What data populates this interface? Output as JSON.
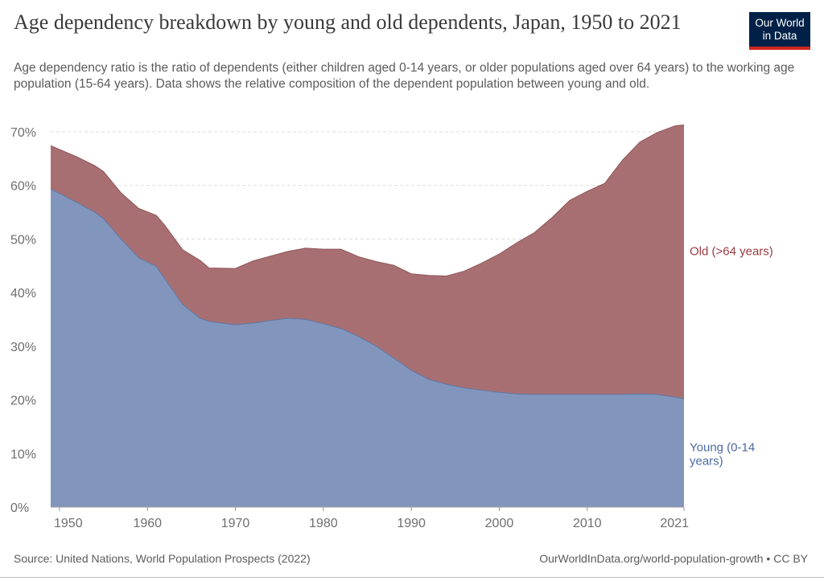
{
  "header": {
    "title": "Age dependency breakdown by young and old dependents, Japan, 1950 to 2021",
    "subtitle": "Age dependency ratio is the ratio of dependents (either children aged 0-14 years, or older populations aged over 64 years) to the working age population (15-64 years). Data shows the relative composition of the dependent population between young and old.",
    "logo_line1": "Our World",
    "logo_line2": "in Data"
  },
  "footer": {
    "source": "Source: United Nations, World Population Prospects (2022)",
    "url": "OurWorldInData.org/world-population-growth • CC BY"
  },
  "colors": {
    "young": "#8296bd",
    "young_stroke": "#5f78a8",
    "old": "#a86f72",
    "old_stroke": "#8f5558",
    "old_label": "#9b3a3f",
    "young_label": "#4c6aa0"
  },
  "chart_data": {
    "type": "area",
    "stacked": true,
    "title": "Age dependency breakdown by young and old dependents, Japan, 1950 to 2021",
    "x": [
      1949,
      1950,
      1952,
      1954,
      1955,
      1957,
      1959,
      1961,
      1962,
      1964,
      1966,
      1967,
      1970,
      1972,
      1974,
      1976,
      1978,
      1980,
      1982,
      1984,
      1986,
      1988,
      1990,
      1992,
      1994,
      1996,
      1998,
      2000,
      2002,
      2004,
      2006,
      2008,
      2010,
      2012,
      2014,
      2016,
      2018,
      2020,
      2021
    ],
    "series": [
      {
        "name": "Young (0-14 years)",
        "label_lines": [
          "Young (0-14",
          "years)"
        ],
        "values": [
          59.3,
          58.5,
          56.8,
          55.0,
          53.8,
          50.0,
          46.5,
          44.9,
          42.5,
          37.8,
          35.2,
          34.6,
          34.0,
          34.3,
          34.8,
          35.2,
          35.0,
          34.2,
          33.3,
          31.8,
          30.0,
          27.8,
          25.5,
          23.8,
          22.9,
          22.2,
          21.8,
          21.4,
          21.1,
          21.0,
          21.0,
          21.0,
          21.0,
          21.0,
          21.0,
          21.1,
          21.0,
          20.5,
          20.2
        ]
      },
      {
        "name": "Old (>64 years)",
        "label_lines": [
          "Old (>64 years)"
        ],
        "values": [
          8.1,
          8.2,
          8.5,
          8.7,
          8.8,
          8.6,
          9.2,
          9.5,
          10.0,
          10.2,
          10.8,
          10.0,
          10.5,
          11.6,
          12.0,
          12.5,
          13.3,
          13.9,
          14.8,
          14.9,
          15.8,
          17.3,
          18.0,
          19.4,
          20.2,
          21.8,
          23.7,
          25.8,
          28.2,
          30.2,
          33.0,
          36.2,
          37.9,
          39.4,
          43.7,
          47.0,
          48.9,
          50.6,
          51.1
        ]
      }
    ],
    "xticks": [
      1950,
      1960,
      1970,
      1980,
      1990,
      2000,
      2010,
      2021
    ],
    "yticks": [
      0,
      10,
      20,
      30,
      40,
      50,
      60,
      70
    ],
    "ytick_labels": [
      "0%",
      "10%",
      "20%",
      "30%",
      "40%",
      "50%",
      "60%",
      "70%"
    ],
    "xlim": [
      1949,
      2021
    ],
    "ylim": [
      0,
      70
    ],
    "grid": true
  }
}
